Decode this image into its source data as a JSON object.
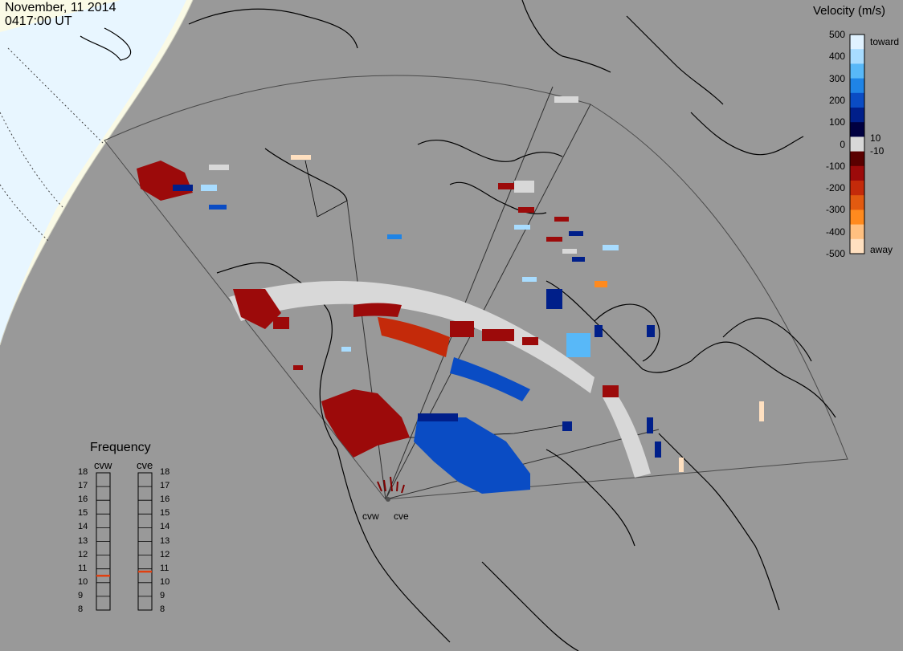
{
  "header": {
    "date": "November, 11 2014",
    "time": "0417:00 UT"
  },
  "velocity_scale": {
    "title": "Velocity (m/s)",
    "ticks": [
      "500",
      "400",
      "300",
      "200",
      "100",
      "0",
      "-100",
      "-200",
      "-300",
      "-400",
      "-500"
    ],
    "inner_labels": [
      "10",
      "-10"
    ],
    "toward_label": "toward",
    "away_label": "away",
    "colors": [
      "#e0f2ff",
      "#a8dcff",
      "#58b8f8",
      "#1f84e6",
      "#0a4cc4",
      "#001f8a",
      "#000040",
      "#d8d8d8",
      "#5a0000",
      "#9c0a0a",
      "#c42a0a",
      "#e25a10",
      "#ff8a1e",
      "#ffc080",
      "#ffe0c0"
    ]
  },
  "frequency": {
    "title": "Frequency",
    "radars": [
      {
        "name": "cvw",
        "value": 10.5
      },
      {
        "name": "cve",
        "value": 10.8
      }
    ],
    "ticks": [
      "18",
      "17",
      "16",
      "15",
      "14",
      "13",
      "12",
      "11",
      "10",
      "9",
      "8"
    ],
    "marker_color": "#e04010"
  },
  "map": {
    "sites": [
      {
        "name": "cvw"
      },
      {
        "name": "cve"
      }
    ],
    "background": "#999999",
    "sunlit_color": "#e8f6ff",
    "terminator_color": "#fafae6"
  }
}
